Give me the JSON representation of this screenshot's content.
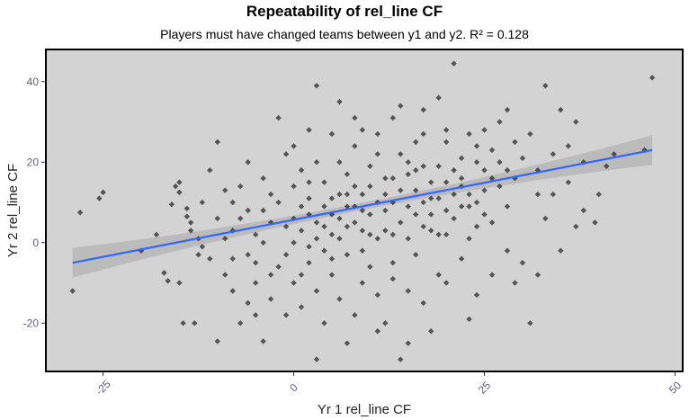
{
  "chart_data": {
    "type": "scatter",
    "title": "Repeatability of rel_line CF",
    "subtitle": "Players must have changed teams between y1 and y2. R² = 0.128",
    "xlabel": "Yr 1 rel_line CF",
    "ylabel": "Yr 2 rel_line CF",
    "xlim": [
      -32.5,
      51
    ],
    "ylim": [
      -32,
      48
    ],
    "xticks": [
      "-25",
      "0",
      "25",
      "50"
    ],
    "xtick_values": [
      -25,
      0,
      25,
      50
    ],
    "yticks": [
      "-20",
      "0",
      "20",
      "40"
    ],
    "ytick_values": [
      -20,
      0,
      20,
      40
    ],
    "grid": false,
    "colors": {
      "panel": "#d3d3d3",
      "points": "#000000",
      "fit_line": "#3366ff",
      "confidence_band": "#b5b5b5"
    },
    "fit": {
      "type": "linear",
      "x": [
        -29,
        47
      ],
      "y": [
        -5,
        23
      ],
      "r_squared": 0.128
    },
    "points": [
      [
        -29,
        -12
      ],
      [
        -28,
        7.5
      ],
      [
        -25.5,
        11
      ],
      [
        -25,
        12.5
      ],
      [
        -17,
        -7.5
      ],
      [
        -16.5,
        -9.5
      ],
      [
        -15,
        -10
      ],
      [
        -15.5,
        14
      ],
      [
        -15,
        15
      ],
      [
        -15,
        12.5
      ],
      [
        -16,
        9.5
      ],
      [
        -14,
        8.5
      ],
      [
        -14,
        6.5
      ],
      [
        -13.5,
        5
      ],
      [
        -13.5,
        3
      ],
      [
        -14.5,
        -20
      ],
      [
        -13,
        -20
      ],
      [
        -12.5,
        1
      ],
      [
        -12,
        -1
      ],
      [
        -12.5,
        -3
      ],
      [
        -18,
        2
      ],
      [
        -20,
        -2
      ],
      [
        -11,
        18
      ],
      [
        -10,
        25
      ],
      [
        -9,
        13
      ],
      [
        -8,
        10
      ],
      [
        -7,
        6
      ],
      [
        -6,
        -3
      ],
      [
        -5,
        2
      ],
      [
        -4,
        8
      ],
      [
        -3,
        12
      ],
      [
        -2,
        -6
      ],
      [
        -1,
        4
      ],
      [
        -9,
        -8
      ],
      [
        -8,
        -12
      ],
      [
        -6,
        -15
      ],
      [
        -5,
        -10
      ],
      [
        -3,
        -14
      ],
      [
        -1,
        -18
      ],
      [
        -10,
        -24.5
      ],
      [
        -4,
        -24.5
      ],
      [
        -2,
        31
      ],
      [
        0,
        24
      ],
      [
        1,
        18
      ],
      [
        2,
        15
      ],
      [
        3,
        39
      ],
      [
        3,
        -29
      ],
      [
        4,
        9
      ],
      [
        5,
        2
      ],
      [
        6,
        35
      ],
      [
        6,
        20
      ],
      [
        7,
        12
      ],
      [
        8,
        5
      ],
      [
        9,
        -2
      ],
      [
        10,
        14
      ],
      [
        11,
        22
      ],
      [
        12,
        8
      ],
      [
        13,
        -5
      ],
      [
        14,
        -29
      ],
      [
        15,
        17
      ],
      [
        16,
        25
      ],
      [
        17,
        10
      ],
      [
        18,
        3
      ],
      [
        19,
        -8
      ],
      [
        20,
        28
      ],
      [
        21,
        44.5
      ],
      [
        22,
        16
      ],
      [
        23,
        9
      ],
      [
        24,
        20
      ],
      [
        25,
        13
      ],
      [
        26,
        5
      ],
      [
        27,
        30
      ],
      [
        28,
        18
      ],
      [
        29,
        25
      ],
      [
        30,
        -5
      ],
      [
        31,
        -20
      ],
      [
        32,
        12
      ],
      [
        33,
        39
      ],
      [
        34,
        22
      ],
      [
        35,
        33
      ],
      [
        36,
        15
      ],
      [
        37,
        30
      ],
      [
        38,
        8
      ],
      [
        39.5,
        5
      ],
      [
        41,
        19
      ],
      [
        42,
        22
      ],
      [
        46,
        23
      ],
      [
        47,
        41
      ],
      [
        -7,
        -20
      ],
      [
        -5,
        -18
      ],
      [
        0,
        -10
      ],
      [
        1,
        -16
      ],
      [
        2,
        -5
      ],
      [
        3,
        -12
      ],
      [
        4,
        -20
      ],
      [
        5,
        -8
      ],
      [
        6,
        -14
      ],
      [
        7,
        -3
      ],
      [
        8,
        -18
      ],
      [
        9,
        -10
      ],
      [
        10,
        -6
      ],
      [
        11,
        -13
      ],
      [
        12,
        -20
      ],
      [
        13,
        -9
      ],
      [
        15,
        -12
      ],
      [
        16,
        -3
      ],
      [
        17,
        -15
      ],
      [
        18,
        -22
      ],
      [
        20,
        -10
      ],
      [
        22,
        -4
      ],
      [
        24,
        -13
      ],
      [
        26,
        -8
      ],
      [
        28,
        -2
      ],
      [
        0,
        0
      ],
      [
        1,
        3
      ],
      [
        2,
        7
      ],
      [
        3,
        1
      ],
      [
        4,
        -2
      ],
      [
        5,
        11
      ],
      [
        6,
        6
      ],
      [
        7,
        9
      ],
      [
        8,
        14
      ],
      [
        9,
        3
      ],
      [
        10,
        7
      ],
      [
        11,
        1
      ],
      [
        12,
        12
      ],
      [
        13,
        16
      ],
      [
        14,
        5
      ],
      [
        15,
        9
      ],
      [
        16,
        13
      ],
      [
        17,
        19
      ],
      [
        18,
        7
      ],
      [
        19,
        11
      ],
      [
        20,
        15
      ],
      [
        21,
        6
      ],
      [
        22,
        21
      ],
      [
        23,
        12
      ],
      [
        24,
        4
      ],
      [
        25,
        18
      ],
      [
        26,
        23
      ],
      [
        -2,
        10
      ],
      [
        -3,
        5
      ],
      [
        -4,
        0
      ],
      [
        -5,
        -5
      ],
      [
        -6,
        8
      ],
      [
        -7,
        14
      ],
      [
        -8,
        3
      ],
      [
        -9,
        1
      ],
      [
        -10,
        6
      ],
      [
        -11,
        -4
      ],
      [
        0,
        14
      ],
      [
        1,
        9
      ],
      [
        2,
        -1
      ],
      [
        3,
        20
      ],
      [
        4,
        15
      ],
      [
        5,
        -4
      ],
      [
        6,
        1
      ],
      [
        7,
        17
      ],
      [
        8,
        24
      ],
      [
        9,
        8
      ],
      [
        10,
        19
      ],
      [
        11,
        27
      ],
      [
        12,
        3
      ],
      [
        13,
        10
      ],
      [
        14,
        22
      ],
      [
        15,
        1
      ],
      [
        16,
        7
      ],
      [
        17,
        27
      ],
      [
        18,
        15
      ],
      [
        19,
        19
      ],
      [
        20,
        2
      ],
      [
        21,
        12
      ],
      [
        22,
        9
      ],
      [
        23,
        27
      ],
      [
        24,
        24
      ],
      [
        25,
        7
      ],
      [
        27,
        14
      ],
      [
        28,
        9
      ],
      [
        29,
        16
      ],
      [
        30,
        21
      ],
      [
        31,
        27
      ],
      [
        32,
        18
      ],
      [
        33,
        6
      ],
      [
        34,
        12
      ],
      [
        36,
        24
      ],
      [
        38,
        20
      ],
      [
        40,
        12
      ],
      [
        3,
        5
      ],
      [
        5,
        7
      ],
      [
        7,
        4
      ],
      [
        9,
        12
      ],
      [
        11,
        10
      ],
      [
        13,
        2
      ],
      [
        15,
        20
      ],
      [
        17,
        4
      ],
      [
        19,
        2
      ],
      [
        21,
        18
      ],
      [
        23,
        1
      ],
      [
        25,
        28
      ],
      [
        27,
        20
      ],
      [
        -1,
        -3
      ],
      [
        0,
        6
      ],
      [
        2,
        11
      ],
      [
        4,
        4
      ],
      [
        6,
        12
      ],
      [
        8,
        9
      ],
      [
        10,
        2
      ],
      [
        12,
        16
      ],
      [
        14,
        13
      ],
      [
        16,
        18
      ],
      [
        18,
        11
      ],
      [
        20,
        8
      ],
      [
        22,
        14
      ],
      [
        24,
        10
      ],
      [
        26,
        16
      ],
      [
        -4,
        16
      ],
      [
        -6,
        20
      ],
      [
        -8,
        -4
      ],
      [
        -3,
        -8
      ],
      [
        1,
        -8
      ],
      [
        5,
        27
      ],
      [
        9,
        28
      ],
      [
        13,
        31
      ],
      [
        17,
        33
      ],
      [
        19,
        36
      ],
      [
        11,
        -22
      ],
      [
        7,
        -25
      ],
      [
        15,
        -25
      ],
      [
        23,
        -19
      ],
      [
        -1,
        22
      ],
      [
        2,
        28
      ],
      [
        8,
        31
      ],
      [
        14,
        34
      ],
      [
        20,
        25
      ],
      [
        28,
        33
      ],
      [
        35,
        -2
      ],
      [
        37,
        4
      ],
      [
        29,
        -10
      ],
      [
        32,
        -8
      ],
      [
        -12,
        10
      ]
    ]
  }
}
